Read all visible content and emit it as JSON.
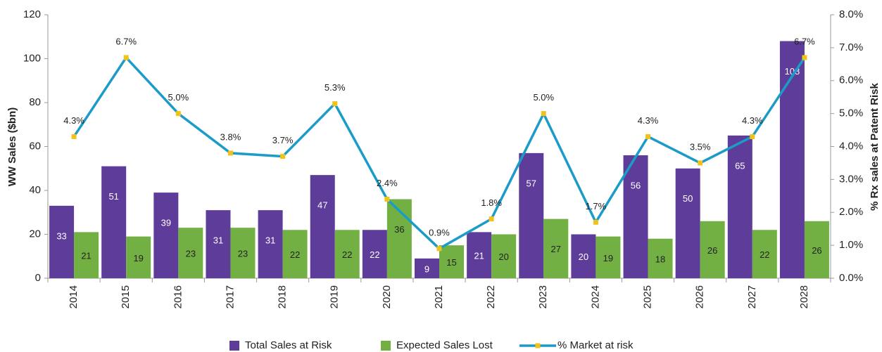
{
  "chart_data": {
    "type": "bar_line",
    "categories": [
      "2014",
      "2015",
      "2016",
      "2017",
      "2018",
      "2019",
      "2020",
      "2021",
      "2022",
      "2023",
      "2024",
      "2025",
      "2026",
      "2027",
      "2028"
    ],
    "series": [
      {
        "name": "Total Sales at Risk",
        "color": "#5e3c99",
        "values": [
          33,
          51,
          39,
          31,
          31,
          47,
          22,
          9,
          21,
          57,
          20,
          56,
          50,
          65,
          108
        ]
      },
      {
        "name": "Expected Sales Lost",
        "color": "#72b043",
        "values": [
          21,
          19,
          23,
          23,
          22,
          22,
          36,
          15,
          20,
          27,
          19,
          18,
          26,
          22,
          26
        ]
      },
      {
        "name": "% Market at risk",
        "color": "#1b9cc8",
        "marker_color": "#f2c21b",
        "axis": "y2",
        "values": [
          4.3,
          6.7,
          5.0,
          3.8,
          3.7,
          5.3,
          2.4,
          0.9,
          1.8,
          5.0,
          1.7,
          4.3,
          3.5,
          4.3,
          6.7
        ],
        "value_labels": [
          "4.3%",
          "6.7%",
          "5.0%",
          "3.8%",
          "3.7%",
          "5.3%",
          "2.4%",
          "0.9%",
          "1.8%",
          "5.0%",
          "1.7%",
          "4.3%",
          "3.5%",
          "4.3%",
          "6.7%"
        ]
      }
    ],
    "ylabel": "WW Sales ($bn)",
    "y2label": "% Rx sales at Patent Risk",
    "ylim": [
      0,
      120
    ],
    "yticks": [
      0,
      20,
      40,
      60,
      80,
      100,
      120
    ],
    "y2lim": [
      0,
      8
    ],
    "y2ticks": [
      {
        "value": 0,
        "label": "0.0%"
      },
      {
        "value": 1,
        "label": "1.0%"
      },
      {
        "value": 2,
        "label": "2.0%"
      },
      {
        "value": 3,
        "label": "3.0%"
      },
      {
        "value": 4,
        "label": "4.0%"
      },
      {
        "value": 5,
        "label": "5.0%"
      },
      {
        "value": 6,
        "label": "6.0%"
      },
      {
        "value": 7,
        "label": "7.0%"
      },
      {
        "value": 8,
        "label": "8.0%"
      }
    ],
    "legend": "bottom"
  }
}
